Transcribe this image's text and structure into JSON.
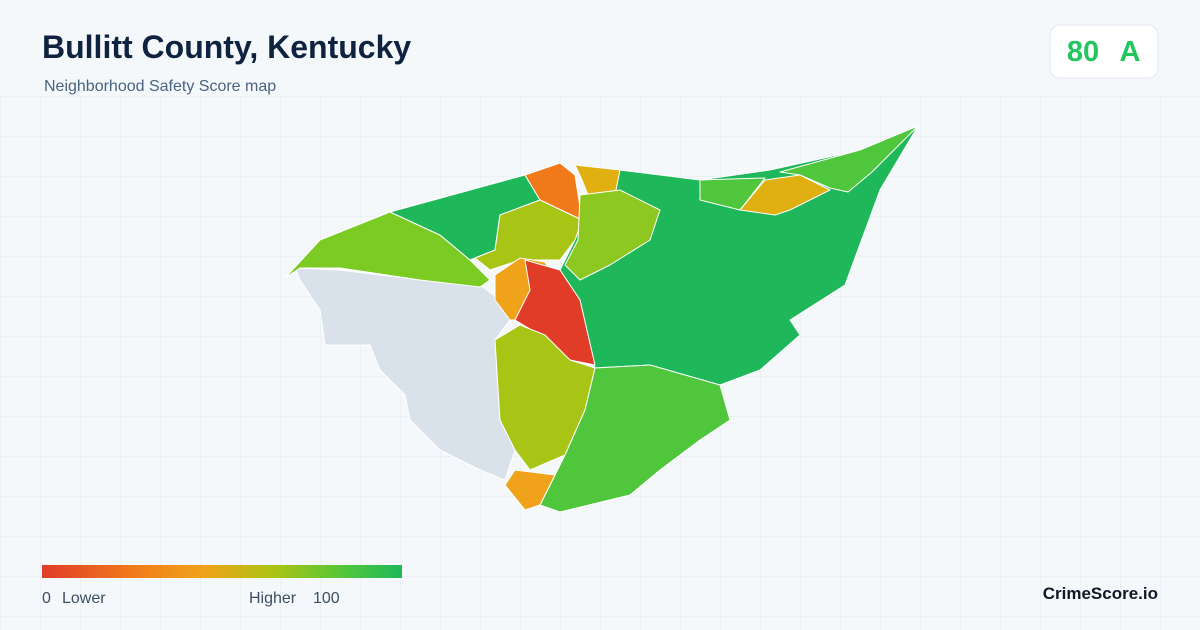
{
  "header": {
    "title": "Bullitt County, Kentucky",
    "subtitle": "Neighborhood Safety Score map"
  },
  "score": {
    "value": 80,
    "grade": "A"
  },
  "legend": {
    "min": 0,
    "min_label": "Lower",
    "max_label": "Higher",
    "max": 100
  },
  "brand": "CrimeScore.io"
}
